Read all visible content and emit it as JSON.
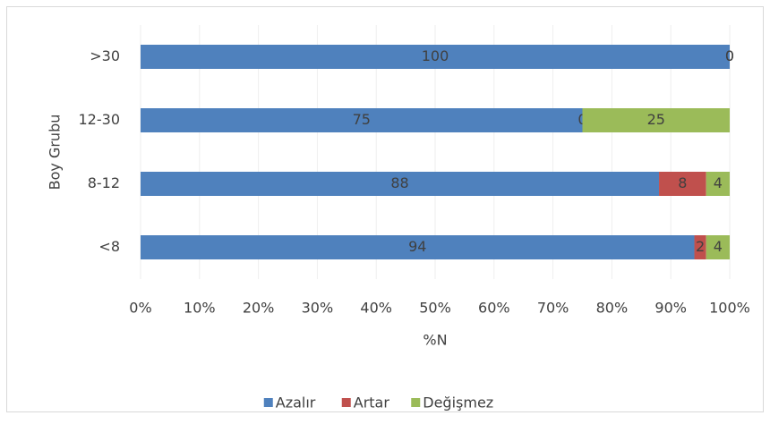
{
  "chart_data": {
    "type": "stacked-bar-horizontal",
    "categories": [
      ">30",
      "12-30",
      "8-12",
      "<8"
    ],
    "series": [
      {
        "name": "Azalır",
        "color": "#4f81bd",
        "values": [
          100,
          75,
          88,
          94
        ]
      },
      {
        "name": "Artar",
        "color": "#c0504d",
        "values": [
          0,
          0,
          8,
          2
        ]
      },
      {
        "name": "Değişmez",
        "color": "#9bbb59",
        "values": [
          0,
          25,
          4,
          4
        ]
      }
    ],
    "xlim": [
      0,
      100
    ],
    "xticks": [
      {
        "value": 0,
        "label": "0%"
      },
      {
        "value": 10,
        "label": "10%"
      },
      {
        "value": 20,
        "label": "20%"
      },
      {
        "value": 30,
        "label": "30%"
      },
      {
        "value": 40,
        "label": "40%"
      },
      {
        "value": 50,
        "label": "50%"
      },
      {
        "value": 60,
        "label": "60%"
      },
      {
        "value": 70,
        "label": "70%"
      },
      {
        "value": 80,
        "label": "80%"
      },
      {
        "value": 90,
        "label": "90%"
      },
      {
        "value": 100,
        "label": "100%"
      }
    ],
    "x_label": "%N",
    "y_label": "Boy Grubu",
    "grid": true,
    "legend": "bottom"
  }
}
